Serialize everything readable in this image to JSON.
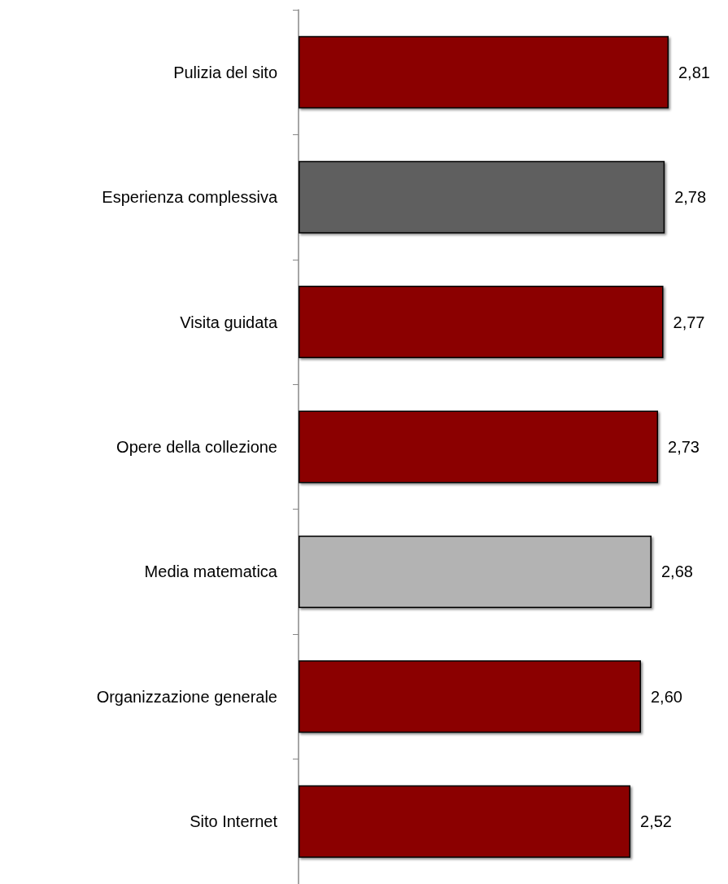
{
  "chart_data": {
    "type": "bar",
    "orientation": "horizontal",
    "categories": [
      "Pulizia del sito",
      "Esperienza complessiva",
      "Visita guidata",
      "Opere della collezione",
      "Media matematica",
      "Organizzazione generale",
      "Sito Internet"
    ],
    "values": [
      2.81,
      2.78,
      2.77,
      2.73,
      2.68,
      2.6,
      2.52
    ],
    "colors": [
      "#8b0606",
      "#5f5f5f",
      "#8b0606",
      "#8b0606",
      "#b3b3b3",
      "#8b0606",
      "#8b0606"
    ],
    "value_labels": [
      "2,81",
      "2,78",
      "2,77",
      "2,73",
      "2,68",
      "2,60",
      "2,52"
    ],
    "grid": false
  }
}
